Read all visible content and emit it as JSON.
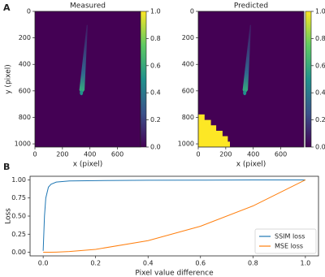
{
  "panel_labels": [
    "A",
    "B"
  ],
  "chart_data": [
    {
      "type": "heatmap",
      "title": "Measured",
      "xlabel": "x (pixel)",
      "ylabel": "y (pixel)",
      "xlim": [
        0,
        768
      ],
      "xticks": [
        0,
        200,
        400,
        600
      ],
      "ylim": [
        1024,
        0
      ],
      "yticks": [
        0,
        200,
        400,
        600,
        800,
        1000
      ],
      "background_color": "#440154",
      "clim": [
        0,
        1
      ],
      "cticks": [
        {
          "value": 0,
          "label": "0.0"
        },
        {
          "value": 0.2,
          "label": "0.2"
        },
        {
          "value": 0.4,
          "label": "0.4"
        },
        {
          "value": 0.6,
          "label": "0.6"
        },
        {
          "value": 0.8,
          "label": "0.8"
        },
        {
          "value": 1,
          "label": "1.0"
        }
      ]
    },
    {
      "type": "heatmap",
      "title": "Predicted",
      "xlabel": "x (pixel)",
      "xlim": [
        0,
        768
      ],
      "xticks": [
        0,
        200,
        400,
        600
      ],
      "ylim": [
        1024,
        0
      ],
      "yticks": [
        0,
        200,
        400,
        600,
        800,
        1000
      ],
      "background_color": "#440154",
      "clim": [
        0,
        1
      ],
      "cticks": [
        {
          "value": 0,
          "label": "0.0"
        },
        {
          "value": 0.2,
          "label": "0.2"
        },
        {
          "value": 0.4,
          "label": "0.4"
        },
        {
          "value": 0.6,
          "label": "0.6"
        },
        {
          "value": 0.8,
          "label": "0.8"
        },
        {
          "value": 1,
          "label": "1.0"
        }
      ]
    },
    {
      "type": "line",
      "xlabel": "Pixel value difference",
      "ylabel": "Loss",
      "x": [
        0,
        0.005,
        0.01,
        0.02,
        0.03,
        0.05,
        0.1,
        0.2,
        0.4,
        0.6,
        0.8,
        1.0
      ],
      "series": [
        {
          "name": "SSIM loss",
          "color": "#1f77b4",
          "values": [
            0.02,
            0.5,
            0.75,
            0.9,
            0.94,
            0.97,
            0.985,
            0.99,
            0.995,
            0.997,
            0.999,
            1.0
          ]
        },
        {
          "name": "MSE loss",
          "color": "#ff7f0e",
          "values": [
            0,
            2.5e-05,
            0.0001,
            0.0004,
            0.0009,
            0.0025,
            0.01,
            0.04,
            0.16,
            0.36,
            0.64,
            1.0
          ]
        }
      ],
      "xlim": [
        -0.05,
        1.05
      ],
      "xticks": [
        {
          "value": 0,
          "label": "0.0"
        },
        {
          "value": 0.2,
          "label": "0.2"
        },
        {
          "value": 0.4,
          "label": "0.4"
        },
        {
          "value": 0.6,
          "label": "0.6"
        },
        {
          "value": 0.8,
          "label": "0.8"
        },
        {
          "value": 1,
          "label": "1.0"
        }
      ],
      "ylim": [
        -0.05,
        1.05
      ],
      "yticks": [
        {
          "value": 0,
          "label": "0.00"
        },
        {
          "value": 0.25,
          "label": "0.25"
        },
        {
          "value": 0.5,
          "label": "0.50"
        },
        {
          "value": 0.75,
          "label": "0.75"
        },
        {
          "value": 1,
          "label": "1.00"
        }
      ],
      "legend": "lower right"
    }
  ]
}
